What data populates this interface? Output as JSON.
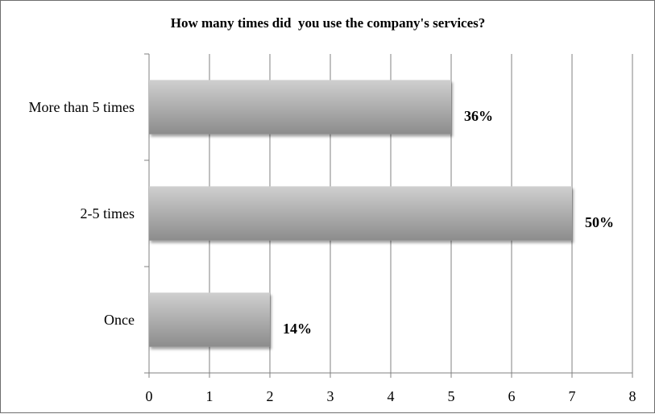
{
  "chart_data": {
    "type": "bar",
    "orientation": "horizontal",
    "title": "How many times did  you use the company's services?",
    "xlabel": "",
    "ylabel": "",
    "categories": [
      "More than 5 times",
      "2-5 times",
      "Once"
    ],
    "values": [
      5,
      7,
      2
    ],
    "data_labels": [
      "36%",
      "50%",
      "14%"
    ],
    "xlim": [
      0,
      8
    ],
    "xticks": [
      "0",
      "1",
      "2",
      "3",
      "4",
      "5",
      "6",
      "7",
      "8"
    ],
    "grid": "vertical",
    "legend": "none",
    "colors": {
      "bar_light": "#cfcfcf",
      "bar_dark": "#8c8c8c",
      "gridline": "#808080"
    }
  }
}
